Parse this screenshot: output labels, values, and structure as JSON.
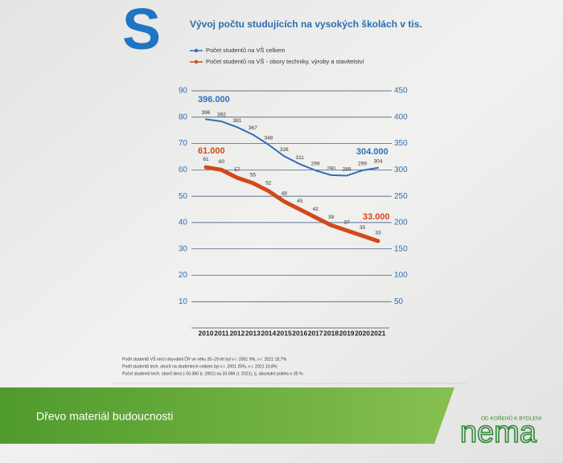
{
  "logo_mark": "S",
  "chart_data": {
    "type": "line",
    "title": "Vývoj počtu studujících na vysokých školách v tis.",
    "categories": [
      "2010",
      "2011",
      "2012",
      "2013",
      "2014",
      "2015",
      "2016",
      "2017",
      "2018",
      "2019",
      "2020",
      "2021"
    ],
    "series": [
      {
        "name": "Počet studentů na VŠ celkem",
        "color": "#2f6fb8",
        "axis": "y2",
        "values": [
          396,
          392,
          381,
          367,
          348,
          326,
          311,
          299,
          290,
          289,
          299,
          304
        ]
      },
      {
        "name": "Počet studentů na VŠ - obory techniky, výroby a stavitelství",
        "color": "#d2491a",
        "values": [
          61,
          60,
          57,
          55,
          52,
          48,
          45,
          42,
          39,
          37,
          35,
          33
        ]
      }
    ],
    "ylim": [
      0,
      90
    ],
    "yticks": [
      10,
      20,
      30,
      40,
      50,
      60,
      70,
      80,
      90
    ],
    "y2lim": [
      0,
      450
    ],
    "y2ticks": [
      50,
      100,
      150,
      200,
      250,
      300,
      350,
      400,
      450
    ],
    "grid": true,
    "legend": "top-left",
    "annotations": [
      "396.000",
      "304.000",
      "61.000",
      "33.000"
    ],
    "notes": [
      "Podíl studentů VŠ mezi obyvateli ČR ve věku 20–29 let byl v r. 2001 9%, v r. 2021 18,7%",
      "Podíl studentů tech. oborů na studentech celkem byl v r. 2001 25%, v r. 2021 10,8%",
      "Počet studentů tech. oborů klesl z 50.360 (r. 2001) na 33.096 (r. 2021), tj. absolutní pokles o 35 %"
    ]
  },
  "banner": "Dřevo materiál budoucnosti",
  "brand": {
    "tagline": "OD KOŘENŮ K BYDLENÍ",
    "name": "nema"
  }
}
